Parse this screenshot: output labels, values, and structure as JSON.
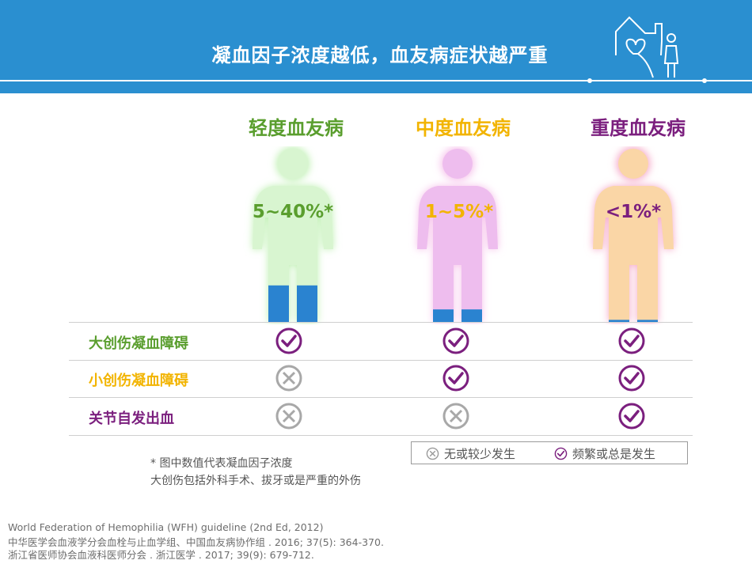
{
  "header": {
    "title": "凝血因子浓度越低，血友病症状越严重"
  },
  "colors": {
    "mild": "#5a9e2e",
    "moderate": "#f2b400",
    "severe": "#7b1f7e",
    "header_bg": "#2a8fd0",
    "blood": "#2a83d0"
  },
  "severities": [
    {
      "title": "轻度血友病",
      "percent": "5~40%*",
      "color": "#5a9e2e",
      "body": "#d8f5d0",
      "glow": "#bdf0b0",
      "blood_level": 0.35
    },
    {
      "title": "中度血友病",
      "percent": "1~5%*",
      "color": "#f2b400",
      "body": "#eebdee",
      "glow": "#f6c0ea",
      "blood_level": 0.12
    },
    {
      "title": "重度血友病",
      "percent": "<1%*",
      "color": "#7b1f7e",
      "body": "#fad6a6",
      "glow": "#f5a6c6",
      "blood_level": 0.02
    }
  ],
  "rows": [
    {
      "label": "大创伤凝血障碍",
      "color": "#5a9e2e",
      "marks": [
        "check",
        "check",
        "check"
      ]
    },
    {
      "label": "小创伤凝血障碍",
      "color": "#f2b400",
      "marks": [
        "cross",
        "check",
        "check"
      ]
    },
    {
      "label": "关节自发出血",
      "color": "#7b1f7e",
      "marks": [
        "cross",
        "cross",
        "check"
      ]
    }
  ],
  "legend": {
    "cross_label": "无或较少发生",
    "check_label": "频繁或总是发生"
  },
  "footnotes": {
    "line1": "*  图中数值代表凝血因子浓度",
    "line2": "大创伤包括外科手术、拔牙或是严重的外伤"
  },
  "references": [
    "World Federation of Hemophilia (WFH) guideline (2nd Ed, 2012)",
    "中华医学会血液学分会血栓与止血学组、中国血友病协作组 . 2016; 37(5): 364-370.",
    "浙江省医师协会血液科医师分会 . 浙江医学 . 2017; 39(9): 679-712."
  ]
}
